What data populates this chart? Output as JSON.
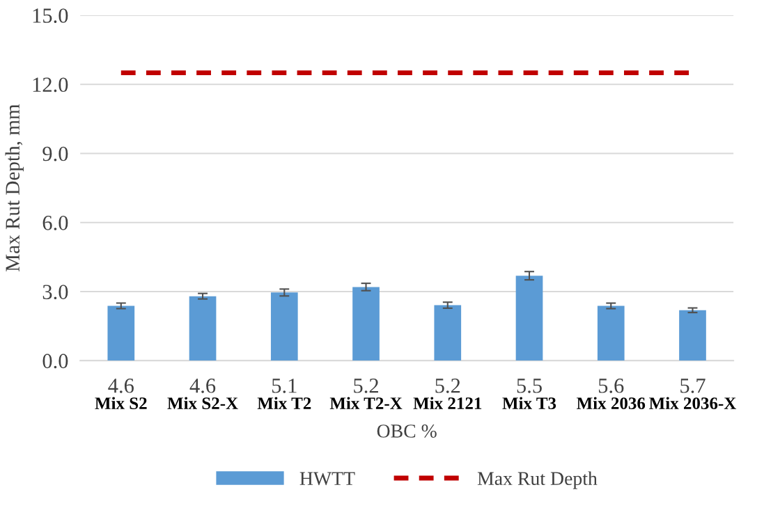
{
  "chart_data": {
    "type": "bar",
    "xlabel": "OBC %",
    "ylabel": "Max Rut Depth, mm",
    "categories": [
      "4.6\nMix S2",
      "4.6\nMix S2-X",
      "5.1\nMix T2",
      "5.2\nMix T2-X",
      "5.2\nMix 2121",
      "5.5\nMix T3",
      "5.6\nMix 2036",
      "5.7\nMix 2036-X"
    ],
    "series": [
      {
        "name": "HWTT",
        "color": "#5b9bd5",
        "values": [
          2.38,
          2.8,
          2.96,
          3.2,
          2.41,
          3.69,
          2.38,
          2.19
        ],
        "errors": [
          0.12,
          0.12,
          0.15,
          0.16,
          0.13,
          0.18,
          0.12,
          0.1
        ]
      },
      {
        "name": "Max Rut Depth",
        "type": "line",
        "color": "#c00000",
        "line_style": "dashed",
        "values": [
          12.5,
          12.5,
          12.5,
          12.5,
          12.5,
          12.5,
          12.5,
          12.5
        ]
      }
    ],
    "ylim": [
      0,
      15
    ],
    "yticks": [
      {
        "value": 0,
        "label": "0.0"
      },
      {
        "value": 3,
        "label": "3.0"
      },
      {
        "value": 6,
        "label": "6.0"
      },
      {
        "value": 9,
        "label": "9.0"
      },
      {
        "value": 12,
        "label": "12.0"
      },
      {
        "value": 15,
        "label": "15.0"
      }
    ],
    "grid": "y",
    "legend": "bottom"
  }
}
